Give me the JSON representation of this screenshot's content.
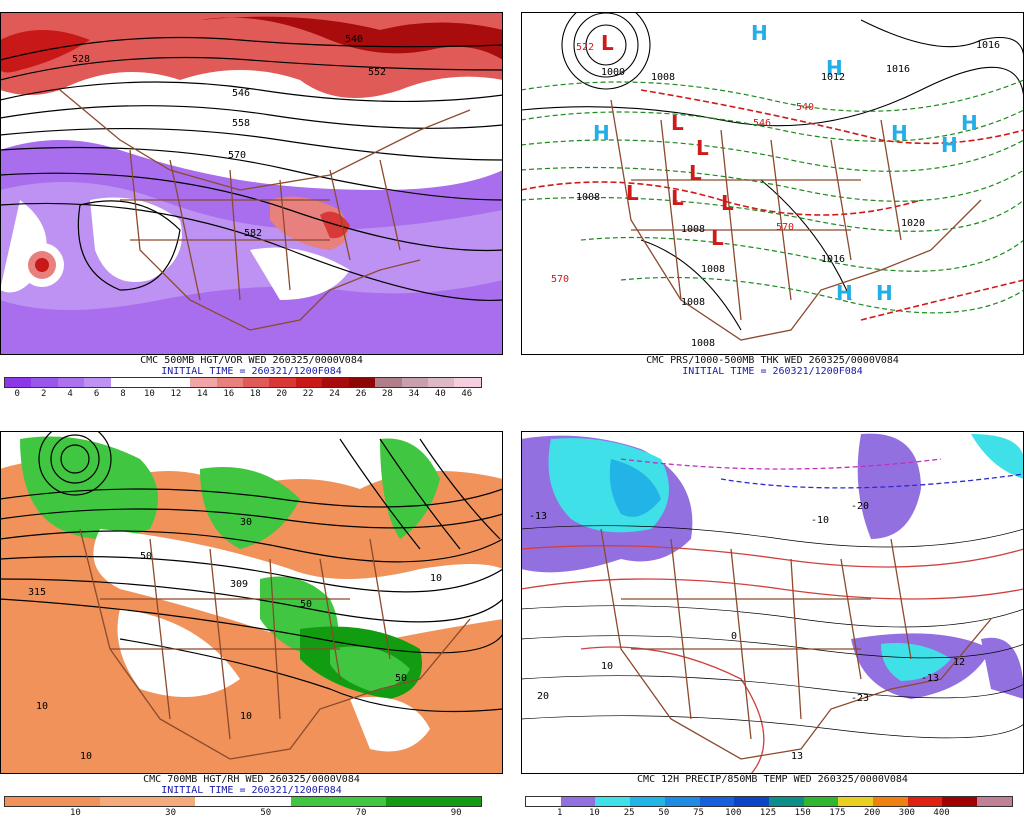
{
  "panels": [
    {
      "caption": "CMC 500MB HGT/VOR WED 260325/0000V084",
      "initial": "INITIAL TIME = 260321/1200F084",
      "scale": {
        "colors": [
          "#8a38e8",
          "#9a55ea",
          "#ac72ee",
          "#bd92f3",
          "#ffffff",
          "#ffffff",
          "#ffffff",
          "#f0a6a6",
          "#e8807e",
          "#e05a58",
          "#d83836",
          "#c81818",
          "#a80c0c",
          "#8c0606",
          "#b07e88",
          "#c8a0ac",
          "#dcbac4",
          "#f3cfe0"
        ],
        "labels": [
          "0",
          "2",
          "4",
          "6",
          "8",
          "10",
          "12",
          "14",
          "16",
          "18",
          "20",
          "22",
          "24",
          "26",
          "28",
          "34",
          "40",
          "46"
        ]
      },
      "contour_labels": [
        "528",
        "540",
        "546",
        "552",
        "558",
        "570",
        "582"
      ]
    },
    {
      "caption": "CMC PRS/1000-500MB THK WED 260325/0000V084",
      "initial": "INITIAL TIME = 260321/1200F084",
      "pressure_labels": [
        "1000",
        "1008",
        "1008",
        "1016",
        "1012",
        "1008",
        "1008",
        "1016",
        "1016",
        "1020",
        "1008",
        "1008"
      ],
      "thickness_labels": [
        "570",
        "546",
        "570",
        "540",
        "522"
      ],
      "highs": 9,
      "lows": 9
    },
    {
      "caption": "CMC 700MB HGT/RH WED 260325/0000V084",
      "initial": "INITIAL TIME = 260321/1200F084",
      "scale": {
        "colors": [
          "#f0925a",
          "#f0925a",
          "#f5aa7c",
          "#f5aa7c",
          "#ffffff",
          "#ffffff",
          "#41c641",
          "#41c641",
          "#119c11",
          "#119c11"
        ],
        "labels": [
          "10",
          "30",
          "50",
          "70",
          "90"
        ]
      },
      "contour_labels": [
        "309",
        "315",
        "50",
        "10",
        "30",
        "50",
        "10",
        "10",
        "10",
        "50"
      ]
    },
    {
      "caption": "CMC 12H PRECIP/850MB TEMP WED 260325/0000V084",
      "initial": "",
      "scale": {
        "colors": [
          "#ffffff",
          "#9370e0",
          "#40e0e8",
          "#22b4e6",
          "#1e8ce4",
          "#1660e0",
          "#0c44c8",
          "#0a8f8a",
          "#2fb82f",
          "#e8d020",
          "#f08010",
          "#e02010",
          "#a00000",
          "#c08098"
        ],
        "labels": [
          "1",
          "10",
          "25",
          "50",
          "75",
          "100",
          "125",
          "150",
          "175",
          "200",
          "300",
          "400"
        ]
      },
      "contour_labels": [
        "-20",
        "-10",
        "0",
        "10",
        "20",
        "-13",
        "12",
        "13",
        "-23",
        "-13"
      ]
    }
  ]
}
